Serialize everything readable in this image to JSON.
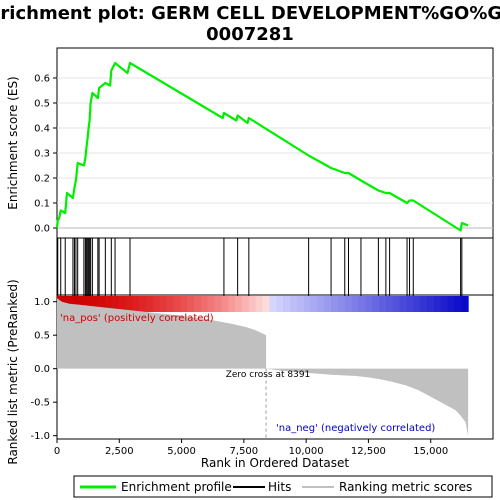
{
  "title_line1": "Enrichment plot: GERM CELL DEVELOPMENT%GO%GO:",
  "title_line2": "0007281",
  "colors": {
    "es_line": "#00ee00",
    "hits": "#000000",
    "ranking": "#c0c0c0",
    "pos_annot": "#cc0000",
    "neg_annot": "#0000cc"
  },
  "chart_data": [
    {
      "type": "line",
      "panel": "enrichment-profile",
      "ylabel": "Enrichment score (ES)",
      "xlim": [
        0,
        17500
      ],
      "ylim": [
        -0.04,
        0.72
      ],
      "yticks": [
        0.0,
        0.1,
        0.2,
        0.3,
        0.4,
        0.5,
        0.6
      ],
      "ytick_labels": [
        "0.0",
        "0.1",
        "0.2",
        "0.3",
        "0.4",
        "0.5",
        "0.6"
      ],
      "series": [
        {
          "x": [
            0,
            30,
            90,
            150,
            330,
            400,
            640,
            700,
            760,
            830,
            1080,
            1140,
            1180,
            1230,
            1270,
            1310,
            1350,
            1420,
            1640,
            1690,
            1940,
            2130,
            2180,
            2330,
            2830,
            2930,
            6650,
            6700,
            7200,
            7250,
            7650,
            7700,
            10100,
            11000,
            11550,
            11600,
            11700,
            12200,
            12900,
            13200,
            13350,
            13700,
            14050,
            14150,
            14300,
            16200,
            16250,
            16500
          ],
          "y": [
            0.0,
            0.03,
            0.04,
            0.07,
            0.06,
            0.14,
            0.12,
            0.16,
            0.19,
            0.26,
            0.25,
            0.28,
            0.32,
            0.36,
            0.4,
            0.43,
            0.5,
            0.54,
            0.52,
            0.56,
            0.58,
            0.57,
            0.63,
            0.66,
            0.62,
            0.66,
            0.44,
            0.46,
            0.43,
            0.45,
            0.42,
            0.44,
            0.29,
            0.24,
            0.22,
            0.22,
            0.22,
            0.19,
            0.15,
            0.14,
            0.14,
            0.12,
            0.1,
            0.11,
            0.11,
            -0.01,
            0.02,
            0.01
          ]
        }
      ],
      "legend": [
        "Enrichment profile"
      ]
    },
    {
      "type": "bar",
      "panel": "hits",
      "legend": [
        "Hits"
      ],
      "hit_positions": [
        30,
        150,
        330,
        640,
        700,
        760,
        830,
        1080,
        1140,
        1180,
        1230,
        1270,
        1310,
        1350,
        1420,
        1640,
        1690,
        1940,
        2180,
        2330,
        2930,
        6700,
        7250,
        7700,
        10100,
        11000,
        11550,
        11700,
        12200,
        12900,
        13200,
        13350,
        14050,
        14150,
        14300,
        16200,
        16250
      ]
    },
    {
      "type": "area",
      "panel": "ranking-metric",
      "ylabel": "Ranked list metric (PreRanked)",
      "xlabel": "Rank in Ordered Dataset",
      "xlim": [
        0,
        17500
      ],
      "ylim": [
        -1.05,
        1.1
      ],
      "xticks": [
        0,
        2500,
        5000,
        7500,
        10000,
        12500,
        15000
      ],
      "xtick_labels": [
        "0",
        "2,500",
        "5,000",
        "7,500",
        "10,000",
        "12,500",
        "15,000"
      ],
      "yticks": [
        1.0,
        0.5,
        0.0,
        -0.5,
        -1.0
      ],
      "ytick_labels": [
        "1.0",
        "0.5",
        "0.0",
        "-0.5",
        "-1.0"
      ],
      "x": [
        0,
        200,
        500,
        1000,
        1500,
        2000,
        3000,
        4000,
        5000,
        6000,
        7000,
        7600,
        8000,
        8391,
        9000,
        10000,
        11000,
        12000,
        12500,
        13000,
        13500,
        14000,
        14500,
        15000,
        15500,
        16000,
        16200,
        16400,
        16500
      ],
      "values": [
        1.05,
        1.0,
        0.97,
        0.95,
        0.93,
        0.91,
        0.87,
        0.83,
        0.79,
        0.74,
        0.67,
        0.62,
        0.57,
        0.5,
        -0.03,
        -0.06,
        -0.09,
        -0.11,
        -0.13,
        -0.16,
        -0.2,
        -0.25,
        -0.32,
        -0.42,
        -0.52,
        -0.62,
        -0.7,
        -0.8,
        -1.0
      ],
      "zero_cross": 8391,
      "legend": [
        "Ranking metric scores"
      ]
    }
  ],
  "annotations": {
    "pos": "'na_pos' (positively correlated)",
    "neg": "'na_neg' (negatively correlated)",
    "zero": "Zero cross at 8391"
  },
  "legend_labels": {
    "profile": "Enrichment profile",
    "hits": "Hits",
    "ranking": "Ranking metric scores"
  }
}
